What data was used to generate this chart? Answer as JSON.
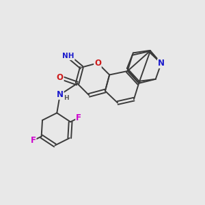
{
  "bg": "#e8e8e8",
  "bond_color": "#3a3a3a",
  "bw": 1.4,
  "atom_colors": {
    "N": "#1a1acc",
    "O": "#cc1a1a",
    "F": "#cc00cc",
    "H": "#555555"
  }
}
